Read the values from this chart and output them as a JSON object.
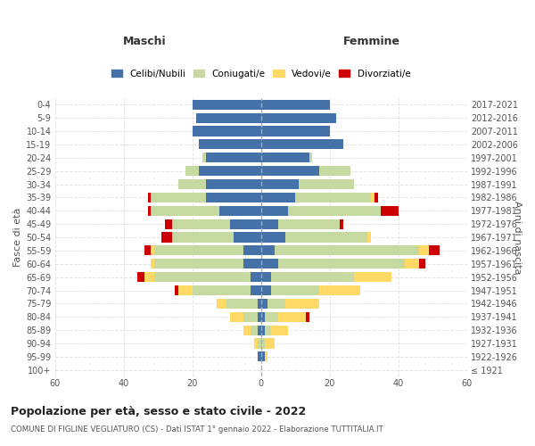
{
  "age_groups": [
    "100+",
    "95-99",
    "90-94",
    "85-89",
    "80-84",
    "75-79",
    "70-74",
    "65-69",
    "60-64",
    "55-59",
    "50-54",
    "45-49",
    "40-44",
    "35-39",
    "30-34",
    "25-29",
    "20-24",
    "15-19",
    "10-14",
    "5-9",
    "0-4"
  ],
  "birth_years": [
    "≤ 1921",
    "1922-1926",
    "1927-1931",
    "1932-1936",
    "1937-1941",
    "1942-1946",
    "1947-1951",
    "1952-1956",
    "1957-1961",
    "1962-1966",
    "1967-1971",
    "1972-1976",
    "1977-1981",
    "1982-1986",
    "1987-1991",
    "1992-1996",
    "1997-2001",
    "2002-2006",
    "2007-2011",
    "2012-2016",
    "2017-2021"
  ],
  "males": {
    "celibi": [
      0,
      1,
      0,
      1,
      1,
      1,
      3,
      3,
      5,
      5,
      8,
      9,
      12,
      16,
      16,
      18,
      16,
      18,
      20,
      19,
      20
    ],
    "coniugati": [
      0,
      0,
      1,
      2,
      4,
      9,
      17,
      28,
      26,
      26,
      18,
      17,
      20,
      16,
      8,
      4,
      1,
      0,
      0,
      0,
      0
    ],
    "vedovi": [
      0,
      0,
      1,
      2,
      4,
      3,
      4,
      3,
      1,
      1,
      0,
      0,
      0,
      0,
      0,
      0,
      0,
      0,
      0,
      0,
      0
    ],
    "divorziati": [
      0,
      0,
      0,
      0,
      0,
      0,
      1,
      2,
      0,
      2,
      3,
      2,
      1,
      1,
      0,
      0,
      0,
      0,
      0,
      0,
      0
    ]
  },
  "females": {
    "nubili": [
      0,
      1,
      0,
      1,
      1,
      2,
      3,
      3,
      5,
      4,
      7,
      5,
      8,
      10,
      11,
      17,
      14,
      24,
      20,
      22,
      20
    ],
    "coniugate": [
      0,
      0,
      1,
      2,
      4,
      5,
      14,
      24,
      37,
      42,
      24,
      18,
      27,
      22,
      16,
      9,
      1,
      0,
      0,
      0,
      0
    ],
    "vedove": [
      0,
      1,
      3,
      5,
      8,
      10,
      12,
      11,
      4,
      3,
      1,
      0,
      0,
      1,
      0,
      0,
      0,
      0,
      0,
      0,
      0
    ],
    "divorziate": [
      0,
      0,
      0,
      0,
      1,
      0,
      0,
      0,
      2,
      3,
      0,
      1,
      5,
      1,
      0,
      0,
      0,
      0,
      0,
      0,
      0
    ]
  },
  "colors": {
    "celibi": "#4472a8",
    "coniugati": "#c5d9a0",
    "vedovi": "#ffd966",
    "divorziati": "#cc0000"
  },
  "title": "Popolazione per età, sesso e stato civile - 2022",
  "subtitle": "COMUNE DI FIGLINE VEGLIATURO (CS) - Dati ISTAT 1° gennaio 2022 - Elaborazione TUTTITALIA.IT",
  "xlabel_left": "Maschi",
  "xlabel_right": "Femmine",
  "ylabel_left": "Fasce di età",
  "ylabel_right": "Anni di nascita",
  "xlim": 60,
  "legend_labels": [
    "Celibi/Nubili",
    "Coniugati/e",
    "Vedovi/e",
    "Divorziati/e"
  ],
  "background_color": "#ffffff",
  "grid_color": "#dddddd"
}
